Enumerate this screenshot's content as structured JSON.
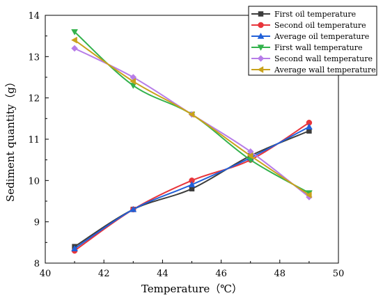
{
  "chart_data": {
    "type": "line",
    "title": "",
    "xlabel": "Temperature（℃）",
    "ylabel": "Sediment quantity（g）",
    "xlim": [
      40,
      50
    ],
    "ylim": [
      8,
      14
    ],
    "xticks": [
      40,
      42,
      44,
      46,
      48,
      50
    ],
    "yticks": [
      8,
      9,
      10,
      11,
      12,
      13,
      14
    ],
    "grid": false,
    "legend_position": "top-right",
    "x": [
      41,
      43,
      45,
      47,
      49
    ],
    "series": [
      {
        "name": "First oil temperature",
        "color": "#3c3c3c",
        "marker": "square",
        "values": [
          8.4,
          9.3,
          9.8,
          10.6,
          11.2
        ]
      },
      {
        "name": "Second oil temperature",
        "color": "#e8353b",
        "marker": "circle",
        "values": [
          8.3,
          9.3,
          10.0,
          10.5,
          11.4
        ]
      },
      {
        "name": "Average oil temperature",
        "color": "#2160d8",
        "marker": "triangle-up",
        "values": [
          8.35,
          9.3,
          9.9,
          10.55,
          11.3
        ]
      },
      {
        "name": "First wall temperature",
        "color": "#33b24c",
        "marker": "triangle-down",
        "values": [
          13.6,
          12.3,
          11.6,
          10.5,
          9.7
        ]
      },
      {
        "name": "Second wall temperature",
        "color": "#b77de8",
        "marker": "diamond",
        "values": [
          13.2,
          12.5,
          11.6,
          10.7,
          9.6
        ]
      },
      {
        "name": "Average wall temperature",
        "color": "#c9a21b",
        "marker": "triangle-left",
        "values": [
          13.4,
          12.4,
          11.6,
          10.6,
          9.65
        ]
      }
    ]
  }
}
